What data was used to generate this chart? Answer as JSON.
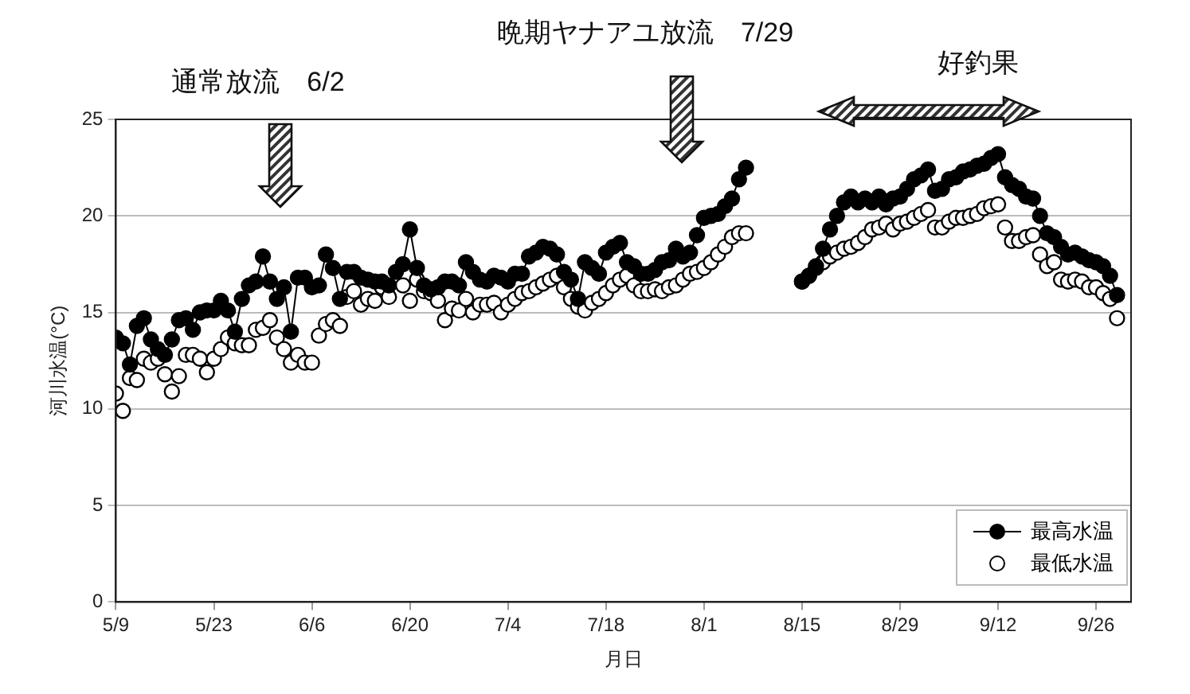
{
  "chart_data": {
    "type": "line",
    "xlabel": "月日",
    "ylabel": "河川水温(°C)",
    "x": [
      "--05-09",
      "--05-10",
      "--05-11",
      "--05-12",
      "--05-13",
      "--05-14",
      "--05-15",
      "--05-16",
      "--05-17",
      "--05-18",
      "--05-19",
      "--05-20",
      "--05-21",
      "--05-22",
      "--05-23",
      "--05-24",
      "--05-25",
      "--05-26",
      "--05-27",
      "--05-28",
      "--05-29",
      "--05-30",
      "--05-31",
      "--06-01",
      "--06-02",
      "--06-03",
      "--06-04",
      "--06-05",
      "--06-06",
      "--06-07",
      "--06-08",
      "--06-09",
      "--06-10",
      "--06-11",
      "--06-12",
      "--06-13",
      "--06-14",
      "--06-15",
      "--06-16",
      "--06-17",
      "--06-18",
      "--06-19",
      "--06-20",
      "--06-21",
      "--06-22",
      "--06-23",
      "--06-24",
      "--06-25",
      "--06-26",
      "--06-27",
      "--06-28",
      "--06-29",
      "--06-30",
      "--07-01",
      "--07-02",
      "--07-03",
      "--07-04",
      "--07-05",
      "--07-06",
      "--07-07",
      "--07-08",
      "--07-09",
      "--07-10",
      "--07-11",
      "--07-12",
      "--07-13",
      "--07-14",
      "--07-15",
      "--07-16",
      "--07-17",
      "--07-18",
      "--07-19",
      "--07-20",
      "--07-21",
      "--07-22",
      "--07-23",
      "--07-24",
      "--07-25",
      "--07-26",
      "--07-27",
      "--07-28",
      "--07-29",
      "--07-30",
      "--07-31",
      "--08-01",
      "--08-02",
      "--08-03",
      "--08-04",
      "--08-05",
      "--08-06",
      "--08-07",
      "--08-08",
      "--08-09",
      "--08-10",
      "--08-11",
      "--08-12",
      "--08-13",
      "--08-14",
      "--08-15",
      "--08-16",
      "--08-17",
      "--08-18",
      "--08-19",
      "--08-20",
      "--08-21",
      "--08-22",
      "--08-23",
      "--08-24",
      "--08-25",
      "--08-26",
      "--08-27",
      "--08-28",
      "--08-29",
      "--08-30",
      "--08-31",
      "--09-01",
      "--09-02",
      "--09-03",
      "--09-04",
      "--09-05",
      "--09-06",
      "--09-07",
      "--09-08",
      "--09-09",
      "--09-10",
      "--09-11",
      "--09-12",
      "--09-13",
      "--09-14",
      "--09-15",
      "--09-16",
      "--09-17",
      "--09-18",
      "--09-19",
      "--09-20",
      "--09-21",
      "--09-22",
      "--09-23",
      "--09-24",
      "--09-25",
      "--09-26",
      "--09-27",
      "--09-28",
      "--09-29"
    ],
    "series": [
      {
        "name": "最高水温",
        "color": "#000000",
        "values": [
          13.7,
          13.4,
          12.3,
          14.3,
          14.7,
          13.6,
          13.1,
          12.8,
          13.6,
          14.6,
          14.7,
          14.1,
          15.0,
          15.1,
          15.1,
          15.6,
          15.1,
          14.0,
          15.7,
          16.4,
          16.6,
          17.9,
          16.6,
          15.7,
          16.3,
          14.0,
          16.8,
          16.8,
          16.3,
          16.4,
          18.0,
          17.3,
          15.7,
          17.1,
          17.1,
          16.8,
          16.7,
          16.6,
          16.6,
          16.4,
          17.1,
          17.5,
          19.3,
          17.3,
          16.4,
          16.2,
          16.3,
          16.6,
          16.6,
          16.4,
          17.6,
          17.1,
          16.7,
          16.6,
          16.9,
          16.8,
          16.6,
          17.0,
          17.0,
          17.9,
          18.1,
          18.4,
          18.3,
          18.0,
          17.1,
          16.7,
          15.7,
          17.6,
          17.3,
          17.0,
          18.1,
          18.4,
          18.6,
          17.6,
          17.4,
          17.0,
          17.0,
          17.2,
          17.6,
          17.7,
          18.3,
          17.9,
          18.1,
          19.0,
          19.9,
          20.0,
          20.1,
          20.5,
          20.9,
          21.9,
          22.5,
          null,
          null,
          null,
          null,
          null,
          null,
          null,
          16.6,
          16.9,
          17.4,
          18.3,
          19.3,
          20.0,
          20.7,
          21.0,
          20.7,
          20.9,
          20.7,
          21.0,
          20.6,
          20.9,
          21.0,
          21.4,
          21.9,
          22.1,
          22.4,
          21.3,
          21.4,
          21.9,
          22.0,
          22.3,
          22.4,
          22.6,
          22.7,
          23.0,
          23.2,
          22.0,
          21.6,
          21.4,
          21.0,
          20.9,
          20.0,
          19.1,
          18.9,
          18.4,
          18.0,
          18.1,
          17.9,
          17.7,
          17.6,
          17.4,
          16.9,
          15.9
        ]
      },
      {
        "name": "最低水温",
        "type": "scatter",
        "color": "#000000",
        "values": [
          10.8,
          9.9,
          11.6,
          11.5,
          12.6,
          12.4,
          12.6,
          11.8,
          10.9,
          11.7,
          12.8,
          12.8,
          12.6,
          11.9,
          12.6,
          13.1,
          13.7,
          13.4,
          13.3,
          13.3,
          14.1,
          14.2,
          14.6,
          13.7,
          13.1,
          12.4,
          12.8,
          12.4,
          12.4,
          13.8,
          14.4,
          14.6,
          14.3,
          15.8,
          16.1,
          15.4,
          15.7,
          15.6,
          16.3,
          15.8,
          null,
          16.4,
          15.6,
          16.7,
          16.1,
          16.0,
          15.6,
          14.6,
          15.2,
          15.1,
          15.7,
          15.0,
          15.4,
          15.4,
          15.5,
          15.0,
          15.4,
          15.7,
          16.0,
          16.1,
          16.3,
          16.5,
          16.7,
          16.9,
          16.3,
          15.7,
          15.3,
          15.1,
          15.5,
          15.7,
          16.0,
          16.4,
          16.7,
          16.9,
          16.4,
          16.1,
          16.1,
          16.2,
          16.1,
          16.3,
          16.4,
          16.7,
          17.0,
          17.1,
          17.3,
          17.6,
          18.0,
          18.4,
          18.9,
          19.1,
          19.1,
          null,
          null,
          null,
          null,
          null,
          null,
          null,
          16.6,
          16.9,
          17.3,
          17.6,
          17.9,
          18.1,
          18.3,
          18.4,
          18.6,
          18.9,
          19.3,
          19.4,
          19.6,
          19.3,
          19.6,
          19.7,
          19.9,
          20.1,
          20.3,
          19.4,
          19.4,
          19.7,
          19.9,
          19.9,
          20.0,
          20.1,
          20.4,
          20.5,
          20.6,
          19.4,
          18.7,
          18.7,
          18.9,
          19.0,
          18.0,
          17.4,
          17.6,
          16.7,
          16.6,
          16.7,
          16.6,
          16.3,
          16.3,
          16.0,
          15.7,
          14.7
        ]
      }
    ],
    "xlim": [
      "--05-09",
      "--10-01"
    ],
    "xticks": [
      {
        "value": "--05-09",
        "label": "5/9"
      },
      {
        "value": "--05-23",
        "label": "5/23"
      },
      {
        "value": "--06-06",
        "label": "6/6"
      },
      {
        "value": "--06-20",
        "label": "6/20"
      },
      {
        "value": "--07-04",
        "label": "7/4"
      },
      {
        "value": "--07-18",
        "label": "7/18"
      },
      {
        "value": "--08-01",
        "label": "8/1"
      },
      {
        "value": "--08-15",
        "label": "8/15"
      },
      {
        "value": "--08-29",
        "label": "8/29"
      },
      {
        "value": "--09-12",
        "label": "9/12"
      },
      {
        "value": "--09-26",
        "label": "9/26"
      }
    ],
    "ylim": [
      0,
      25
    ],
    "yticks": [
      0,
      5,
      10,
      15,
      20,
      25
    ],
    "grid": "y",
    "legend": "bottom right",
    "marker": "circle",
    "annotations": [
      "通常放流　6/2",
      "晩期ヤナアユ放流　7/29",
      "好釣果"
    ]
  }
}
